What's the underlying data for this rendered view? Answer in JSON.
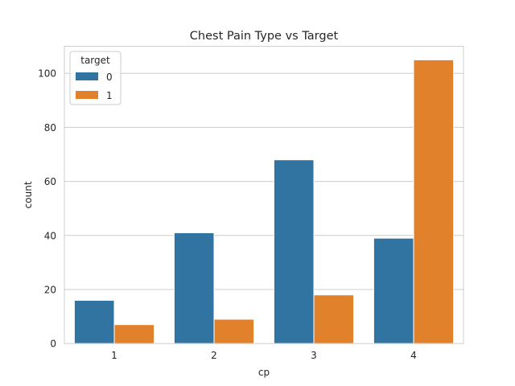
{
  "chart_data": {
    "type": "bar",
    "title": "Chest Pain Type vs Target",
    "xlabel": "cp",
    "ylabel": "count",
    "categories": [
      "1",
      "2",
      "3",
      "4"
    ],
    "series": [
      {
        "name": "0",
        "color": "#3274a1",
        "values": [
          16,
          41,
          68,
          39
        ]
      },
      {
        "name": "1",
        "color": "#e1812c",
        "values": [
          7,
          9,
          18,
          105
        ]
      }
    ],
    "ylim": [
      0,
      110
    ],
    "yticks": [
      0,
      20,
      40,
      60,
      80,
      100
    ],
    "grid": true,
    "legend": {
      "title": "target",
      "placement": "top-left"
    }
  }
}
